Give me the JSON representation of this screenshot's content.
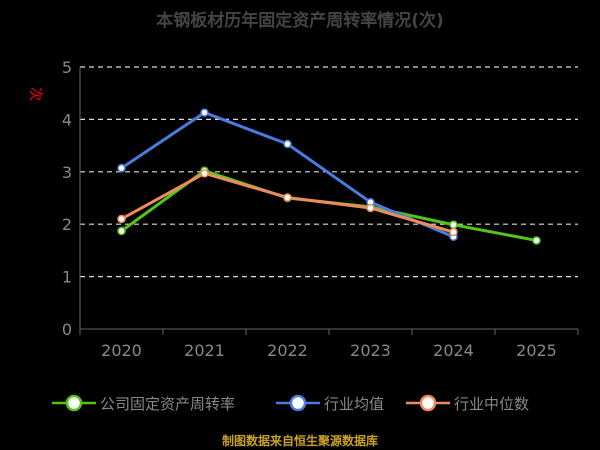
{
  "title": "本钢板材历年固定资产周转率情况(次)",
  "y_unit_label": "次",
  "source": "制图数据来自恒生聚源数据库",
  "colors": {
    "background": "#000000",
    "grid": "#dddddd",
    "axis": "#666666",
    "tick_text": "#888888",
    "title": "#444444",
    "source": "#c9a227"
  },
  "chart_data": {
    "type": "line",
    "title": "本钢板材历年固定资产周转率情况(次)",
    "xlabel": "",
    "ylabel": "次",
    "categories": [
      "2020",
      "2021",
      "2022",
      "2023",
      "2024",
      "2025"
    ],
    "ylim": [
      0,
      5
    ],
    "yticks": [
      0,
      1,
      2,
      3,
      4,
      5
    ],
    "grid": "horizontal-dashed",
    "legend_position": "bottom",
    "series": [
      {
        "name": "公司固定资产周转率",
        "color": "#52c41a",
        "values": [
          1.87,
          3.02,
          2.5,
          2.33,
          1.99,
          1.69
        ]
      },
      {
        "name": "行业均值",
        "color": "#4a7be0",
        "values": [
          3.07,
          4.13,
          3.53,
          2.42,
          1.76,
          null
        ]
      },
      {
        "name": "行业中位数",
        "color": "#f08a5d",
        "values": [
          2.1,
          2.97,
          2.51,
          2.31,
          1.85,
          null
        ]
      }
    ]
  }
}
